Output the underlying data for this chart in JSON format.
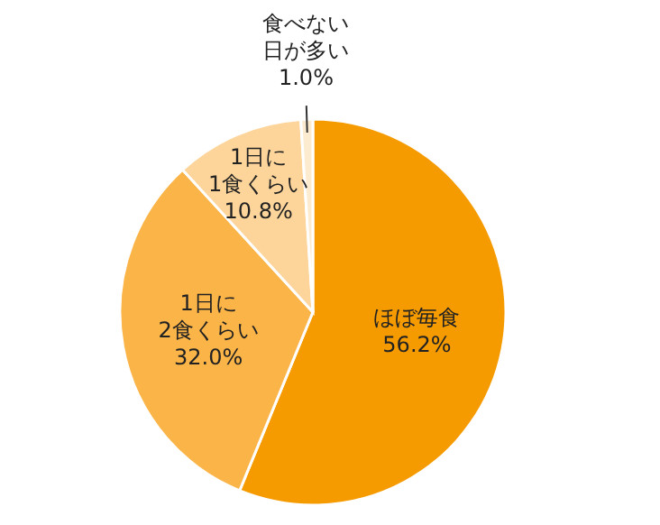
{
  "chart_data": {
    "type": "pie",
    "categories": [
      "ほぼ毎食",
      "1日に\n2食くらい",
      "1日に\n1食くらい",
      "食べない日が多い"
    ],
    "values": [
      56.2,
      32.0,
      10.8,
      1.0
    ],
    "value_labels": [
      "56.2%",
      "32.0%",
      "10.8%",
      "1.0%"
    ],
    "colors": [
      "#f59b00",
      "#fbb448",
      "#fdd59b",
      "#fdebd0"
    ]
  }
}
